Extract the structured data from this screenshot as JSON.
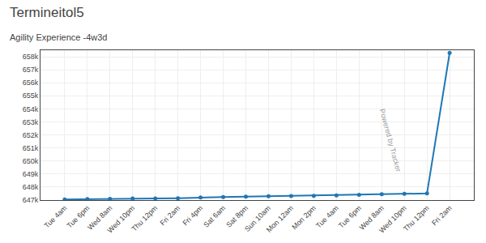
{
  "chart_data": {
    "type": "line",
    "title": "Termineitol5",
    "subtitle": "Agility Experience -4w3d",
    "categories": [
      "Tue 4am",
      "Tue 6pm",
      "Wed 8am",
      "Wed 10pm",
      "Thu 12pm",
      "Fri 2am",
      "Fri 4pm",
      "Sat 6am",
      "Sat 8pm",
      "Sun 10am",
      "Mon 12am",
      "Mon 2pm",
      "Tue 4am",
      "Tue 6pm",
      "Wed 8am",
      "Wed 10pm",
      "Thu 12pm",
      "Fri 2am"
    ],
    "values": [
      647050,
      647080,
      647100,
      647120,
      647130,
      647140,
      647200,
      647230,
      647260,
      647290,
      647310,
      647330,
      647360,
      647410,
      647450,
      647480,
      647510,
      658300
    ],
    "ylim": [
      647000,
      658500
    ],
    "yticks": [
      {
        "value": 647000,
        "label": "647k"
      },
      {
        "value": 648000,
        "label": "648k"
      },
      {
        "value": 649000,
        "label": "649k"
      },
      {
        "value": 650000,
        "label": "650k"
      },
      {
        "value": 651000,
        "label": "651k"
      },
      {
        "value": 652000,
        "label": "652k"
      },
      {
        "value": 653000,
        "label": "653k"
      },
      {
        "value": 654000,
        "label": "654k"
      },
      {
        "value": 655000,
        "label": "655k"
      },
      {
        "value": 656000,
        "label": "656k"
      },
      {
        "value": 657000,
        "label": "657k"
      },
      {
        "value": 658000,
        "label": "658k"
      }
    ],
    "grid": true,
    "marker": "circle",
    "annotations": [
      "Powered by Tracker"
    ]
  }
}
